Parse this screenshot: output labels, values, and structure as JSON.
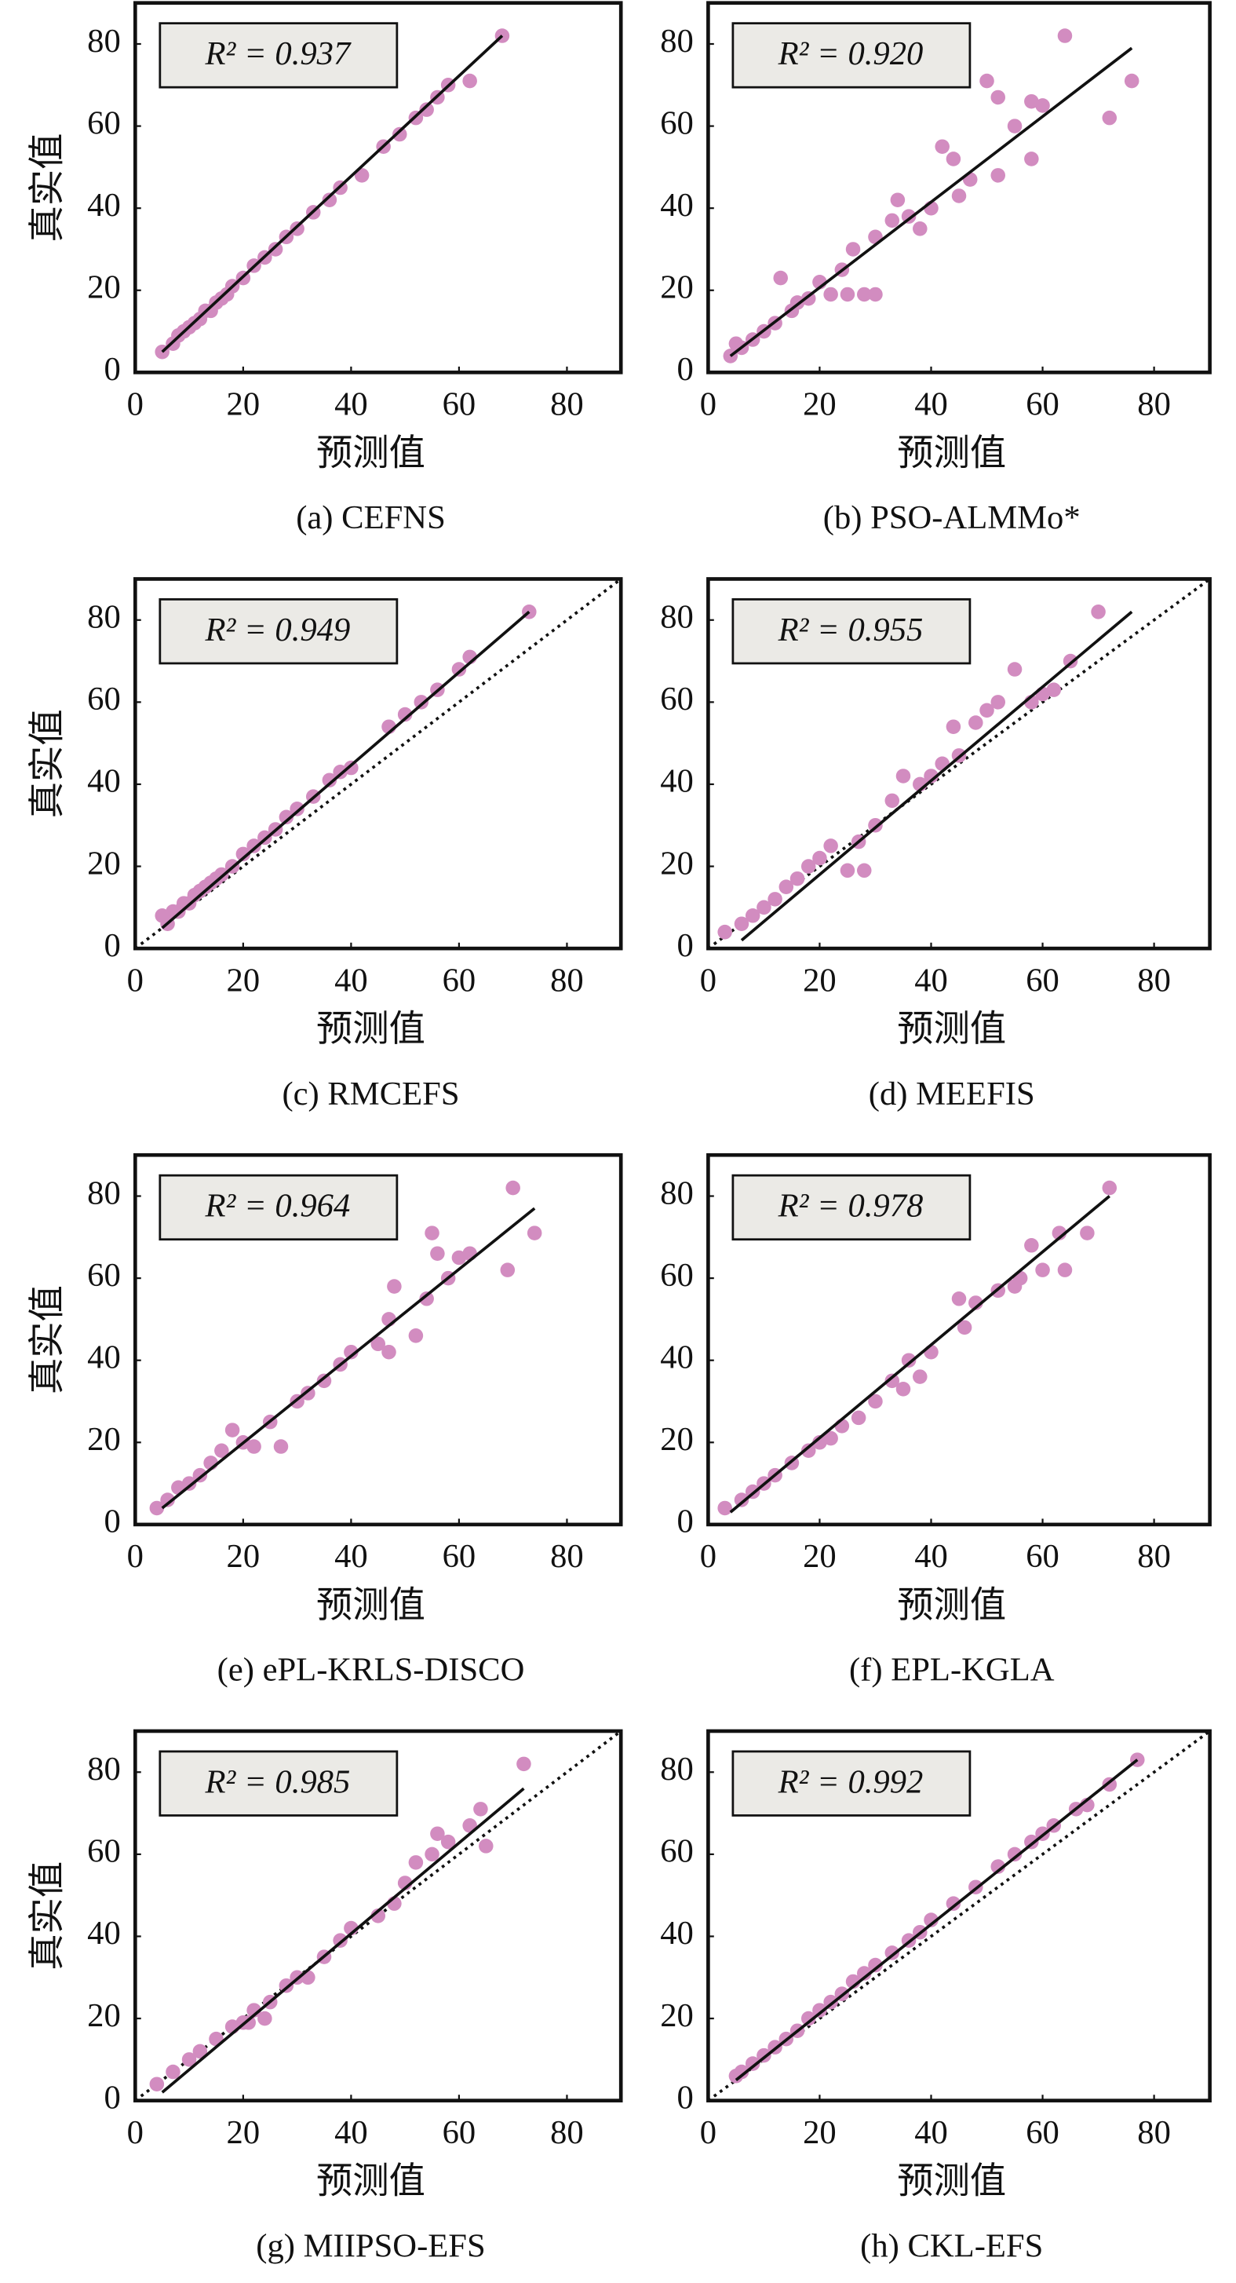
{
  "chart_data": [
    {
      "type": "scatter",
      "title": "(a) CEFNS",
      "xlabel": "预测值",
      "ylabel": "真实值",
      "annotation": "R² = 0.937",
      "color": "#d28cc0",
      "x": [
        5,
        7,
        8,
        9,
        10,
        11,
        12,
        13,
        14,
        15,
        16,
        17,
        18,
        20,
        22,
        24,
        26,
        28,
        30,
        33,
        36,
        38,
        42,
        46,
        49,
        52,
        54,
        56,
        58,
        62,
        68
      ],
      "y": [
        5,
        7,
        9,
        10,
        11,
        12,
        13,
        15,
        15,
        17,
        18,
        19,
        21,
        23,
        26,
        28,
        30,
        33,
        35,
        39,
        42,
        45,
        48,
        55,
        58,
        62,
        64,
        67,
        70,
        71,
        82
      ],
      "fit_line": {
        "x": [
          5,
          68
        ],
        "y": [
          5,
          82
        ]
      },
      "identity_line": false,
      "xlim": [
        0,
        90
      ],
      "ylim": [
        0,
        90
      ],
      "xticks": [
        0,
        20,
        40,
        60,
        80
      ],
      "yticks": [
        0,
        20,
        40,
        60,
        80
      ]
    },
    {
      "type": "scatter",
      "title": "(b) PSO-ALMMo*",
      "xlabel": "预测值",
      "annotation": "R² = 0.920",
      "color": "#d28cc0",
      "x": [
        4,
        5,
        6,
        8,
        10,
        12,
        13,
        15,
        16,
        18,
        20,
        22,
        24,
        25,
        26,
        28,
        30,
        30,
        33,
        34,
        36,
        38,
        40,
        42,
        44,
        45,
        47,
        50,
        52,
        52,
        55,
        58,
        58,
        60,
        64,
        72,
        76
      ],
      "y": [
        4,
        7,
        6,
        8,
        10,
        12,
        23,
        15,
        17,
        18,
        22,
        19,
        25,
        19,
        30,
        19,
        19,
        33,
        37,
        42,
        38,
        35,
        40,
        55,
        52,
        43,
        47,
        71,
        67,
        48,
        60,
        66,
        52,
        65,
        82,
        62,
        71
      ],
      "fit_line": {
        "x": [
          4,
          76
        ],
        "y": [
          4,
          79
        ]
      },
      "identity_line": false,
      "xlim": [
        0,
        90
      ],
      "ylim": [
        0,
        90
      ],
      "xticks": [
        0,
        20,
        40,
        60,
        80
      ],
      "yticks": [
        0,
        20,
        40,
        60,
        80
      ]
    },
    {
      "type": "scatter",
      "title": "(c) RMCEFS",
      "xlabel": "预测值",
      "ylabel": "真实值",
      "annotation": "R² = 0.949",
      "color": "#d28cc0",
      "x": [
        5,
        6,
        7,
        8,
        9,
        10,
        11,
        12,
        13,
        14,
        15,
        16,
        18,
        20,
        22,
        24,
        26,
        28,
        30,
        33,
        36,
        38,
        40,
        47,
        50,
        53,
        56,
        60,
        62,
        73
      ],
      "y": [
        8,
        6,
        9,
        9,
        11,
        11,
        13,
        14,
        15,
        16,
        17,
        18,
        20,
        23,
        25,
        27,
        29,
        32,
        34,
        37,
        41,
        43,
        44,
        54,
        57,
        60,
        63,
        68,
        71,
        82
      ],
      "fit_line": {
        "x": [
          5,
          73
        ],
        "y": [
          5,
          82
        ]
      },
      "identity_line": true,
      "xlim": [
        0,
        90
      ],
      "ylim": [
        0,
        90
      ],
      "xticks": [
        0,
        20,
        40,
        60,
        80
      ],
      "yticks": [
        0,
        20,
        40,
        60,
        80
      ]
    },
    {
      "type": "scatter",
      "title": "(d) MEEFIS",
      "xlabel": "预测值",
      "annotation": "R² = 0.955",
      "color": "#d28cc0",
      "x": [
        3,
        6,
        8,
        10,
        12,
        14,
        16,
        18,
        20,
        22,
        25,
        27,
        28,
        30,
        33,
        35,
        38,
        40,
        42,
        44,
        45,
        48,
        50,
        52,
        55,
        58,
        60,
        62,
        65,
        70
      ],
      "y": [
        4,
        6,
        8,
        10,
        12,
        15,
        17,
        20,
        22,
        25,
        19,
        26,
        19,
        30,
        36,
        42,
        40,
        42,
        45,
        54,
        47,
        55,
        58,
        60,
        68,
        60,
        62,
        63,
        70,
        82
      ],
      "fit_line": {
        "x": [
          6,
          76
        ],
        "y": [
          2,
          82
        ]
      },
      "identity_line": true,
      "xlim": [
        0,
        90
      ],
      "ylim": [
        0,
        90
      ],
      "xticks": [
        0,
        20,
        40,
        60,
        80
      ],
      "yticks": [
        0,
        20,
        40,
        60,
        80
      ]
    },
    {
      "type": "scatter",
      "title": "(e) ePL-KRLS-DISCO",
      "xlabel": "预测值",
      "ylabel": "真实值",
      "annotation": "R² = 0.964",
      "color": "#d28cc0",
      "x": [
        4,
        6,
        8,
        10,
        12,
        14,
        16,
        18,
        20,
        22,
        25,
        27,
        30,
        32,
        35,
        38,
        40,
        45,
        47,
        47,
        48,
        52,
        54,
        55,
        56,
        58,
        60,
        62,
        69,
        70,
        74
      ],
      "y": [
        4,
        6,
        9,
        10,
        12,
        15,
        18,
        23,
        20,
        19,
        25,
        19,
        30,
        32,
        35,
        39,
        42,
        44,
        50,
        42,
        58,
        46,
        55,
        71,
        66,
        60,
        65,
        66,
        62,
        82,
        71
      ],
      "fit_line": {
        "x": [
          5,
          74
        ],
        "y": [
          4,
          77
        ]
      },
      "identity_line": false,
      "xlim": [
        0,
        90
      ],
      "ylim": [
        0,
        90
      ],
      "xticks": [
        0,
        20,
        40,
        60,
        80
      ],
      "yticks": [
        0,
        20,
        40,
        60,
        80
      ]
    },
    {
      "type": "scatter",
      "title": "(f) EPL-KGLA",
      "xlabel": "预测值",
      "annotation": "R² = 0.978",
      "color": "#d28cc0",
      "x": [
        3,
        6,
        8,
        10,
        12,
        15,
        18,
        20,
        22,
        24,
        27,
        30,
        33,
        35,
        36,
        38,
        40,
        45,
        46,
        48,
        52,
        55,
        56,
        58,
        60,
        63,
        64,
        68,
        72
      ],
      "y": [
        4,
        6,
        8,
        10,
        12,
        15,
        18,
        20,
        21,
        24,
        26,
        30,
        35,
        33,
        40,
        36,
        42,
        55,
        48,
        54,
        57,
        58,
        60,
        68,
        62,
        71,
        62,
        71,
        82
      ],
      "fit_line": {
        "x": [
          4,
          72
        ],
        "y": [
          3,
          80
        ]
      },
      "identity_line": false,
      "xlim": [
        0,
        90
      ],
      "ylim": [
        0,
        90
      ],
      "xticks": [
        0,
        20,
        40,
        60,
        80
      ],
      "yticks": [
        0,
        20,
        40,
        60,
        80
      ]
    },
    {
      "type": "scatter",
      "title": "(g) MIIPSO-EFS",
      "xlabel": "预测值",
      "ylabel": "真实值",
      "annotation": "R² = 0.985",
      "color": "#d28cc0",
      "x": [
        4,
        7,
        10,
        12,
        15,
        18,
        20,
        21,
        22,
        24,
        25,
        28,
        30,
        32,
        35,
        38,
        40,
        45,
        48,
        50,
        52,
        55,
        56,
        58,
        62,
        64,
        65,
        72
      ],
      "y": [
        4,
        7,
        10,
        12,
        15,
        18,
        19,
        19,
        22,
        20,
        24,
        28,
        30,
        30,
        35,
        39,
        42,
        45,
        48,
        53,
        58,
        60,
        65,
        63,
        67,
        71,
        62,
        82
      ],
      "fit_line": {
        "x": [
          5,
          72
        ],
        "y": [
          2,
          76
        ]
      },
      "identity_line": true,
      "xlim": [
        0,
        90
      ],
      "ylim": [
        0,
        90
      ],
      "xticks": [
        0,
        20,
        40,
        60,
        80
      ],
      "yticks": [
        0,
        20,
        40,
        60,
        80
      ]
    },
    {
      "type": "scatter",
      "title": "(h) CKL-EFS",
      "xlabel": "预测值",
      "annotation": "R² = 0.992",
      "color": "#d28cc0",
      "x": [
        5,
        6,
        8,
        10,
        12,
        14,
        16,
        18,
        20,
        22,
        24,
        26,
        28,
        30,
        33,
        36,
        38,
        40,
        44,
        48,
        52,
        55,
        58,
        60,
        62,
        66,
        68,
        72,
        77
      ],
      "y": [
        6,
        7,
        9,
        11,
        13,
        15,
        17,
        20,
        22,
        24,
        26,
        29,
        31,
        33,
        36,
        39,
        41,
        44,
        48,
        52,
        57,
        60,
        63,
        65,
        67,
        71,
        72,
        77,
        83
      ],
      "fit_line": {
        "x": [
          5,
          77
        ],
        "y": [
          5,
          83
        ]
      },
      "identity_line": true,
      "xlim": [
        0,
        90
      ],
      "ylim": [
        0,
        90
      ],
      "xticks": [
        0,
        20,
        40,
        60,
        80
      ],
      "yticks": [
        0,
        20,
        40,
        60,
        80
      ]
    }
  ]
}
